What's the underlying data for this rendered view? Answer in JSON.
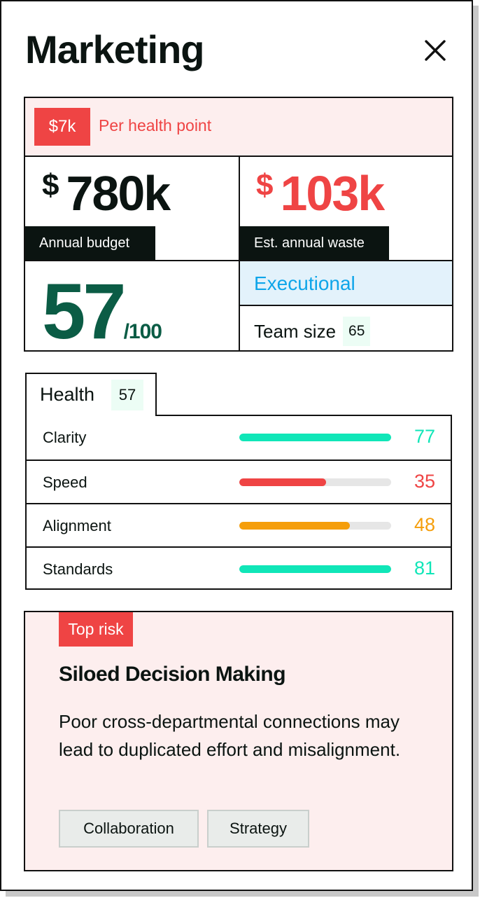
{
  "header": {
    "title": "Marketing",
    "close_icon": "close-icon"
  },
  "summary": {
    "per_health_point": {
      "value": "$7k",
      "label": "Per health point"
    },
    "annual_budget": {
      "currency": "$",
      "amount": "780k",
      "label": "Annual budget"
    },
    "annual_waste": {
      "currency": "$",
      "amount": "103k",
      "label": "Est. annual waste"
    },
    "score": {
      "value": "57",
      "denominator": "/100"
    },
    "category": "Executional",
    "team_size": {
      "label": "Team size",
      "value": "65"
    }
  },
  "health": {
    "tab_label": "Health",
    "tab_value": "57",
    "metrics": [
      {
        "name": "Clarity",
        "value": "77",
        "fraction": 1.0,
        "color": "#10e6b8"
      },
      {
        "name": "Speed",
        "value": "35",
        "fraction": 0.57,
        "color": "#ef4444"
      },
      {
        "name": "Alignment",
        "value": "48",
        "fraction": 0.73,
        "color": "#f59e0b"
      },
      {
        "name": "Standards",
        "value": "81",
        "fraction": 1.0,
        "color": "#10e6b8"
      }
    ]
  },
  "risk": {
    "badge": "Top risk",
    "title": "Siloed Decision Making",
    "description": "Poor cross-departmental connections may lead to duplicated effort and misalignment.",
    "tags": [
      "Collaboration",
      "Strategy"
    ]
  },
  "colors": {
    "accent_red": "#ef4444",
    "score_green": "#0b5c45",
    "exec_blue": "#0ea5e9",
    "dark": "#0b1411"
  }
}
